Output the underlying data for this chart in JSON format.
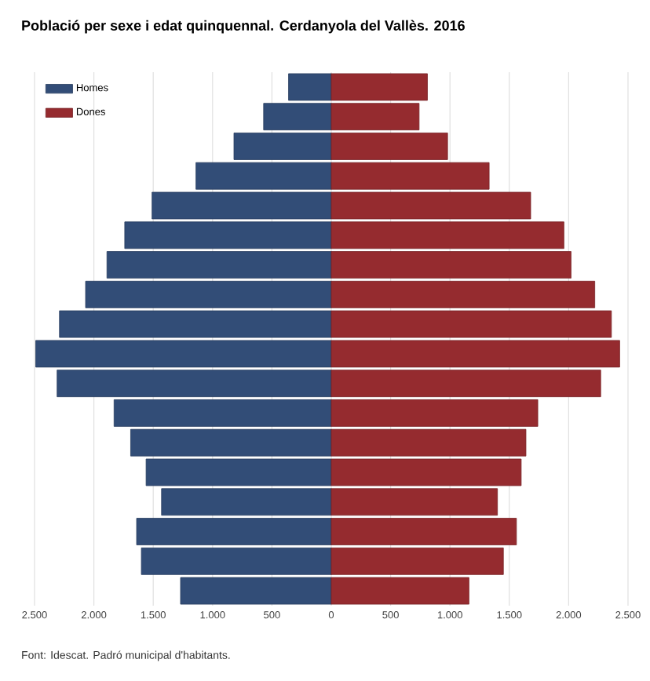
{
  "chart_data": [
    {
      "type": "bar",
      "orientation": "horizontal",
      "title": "Població per sexe i edat quinquennal. Cerdanyola del Vallès. 2016",
      "categories": [
        null,
        null,
        null,
        null,
        null,
        null,
        null,
        null,
        null,
        null,
        null,
        null,
        null,
        null,
        null,
        null,
        null,
        null
      ],
      "series": [
        {
          "name": "Homes",
          "color": "#324d77",
          "values": [
            360,
            570,
            820,
            1140,
            1510,
            1740,
            1890,
            2070,
            2290,
            2490,
            2310,
            1830,
            1690,
            1560,
            1430,
            1640,
            1600,
            1270
          ]
        }
      ],
      "xlim": [
        2500,
        0
      ],
      "xticks": [
        {
          "value": 2500,
          "label": "2.500"
        },
        {
          "value": 2000,
          "label": "2.000"
        },
        {
          "value": 1500,
          "label": "1.500"
        },
        {
          "value": 1000,
          "label": "1.000"
        },
        500,
        0
      ],
      "grid": "x",
      "legend": "top left",
      "tick_labels": "x",
      "annotations": [
        "Font: Idescat. Padró municipal d'habitants."
      ]
    },
    {
      "type": "bar",
      "orientation": "horizontal",
      "categories": [
        null,
        null,
        null,
        null,
        null,
        null,
        null,
        null,
        null,
        null,
        null,
        null,
        null,
        null,
        null,
        null,
        null,
        null
      ],
      "series": [
        {
          "name": "Dones",
          "color": "#952b2f",
          "values": [
            810,
            740,
            980,
            1330,
            1680,
            1960,
            2020,
            2220,
            2360,
            2430,
            2270,
            1740,
            1640,
            1600,
            1400,
            1560,
            1450,
            1160
          ]
        }
      ],
      "xlim": [
        0,
        2500
      ],
      "xticks": [
        500,
        {
          "value": 1000,
          "label": "1.000"
        },
        {
          "value": 1500,
          "label": "1.500"
        },
        {
          "value": 2000,
          "label": "2.000"
        },
        {
          "value": 2500,
          "label": "2.500"
        }
      ],
      "grid": "x",
      "legend": "left",
      "tick_labels": "x"
    }
  ]
}
